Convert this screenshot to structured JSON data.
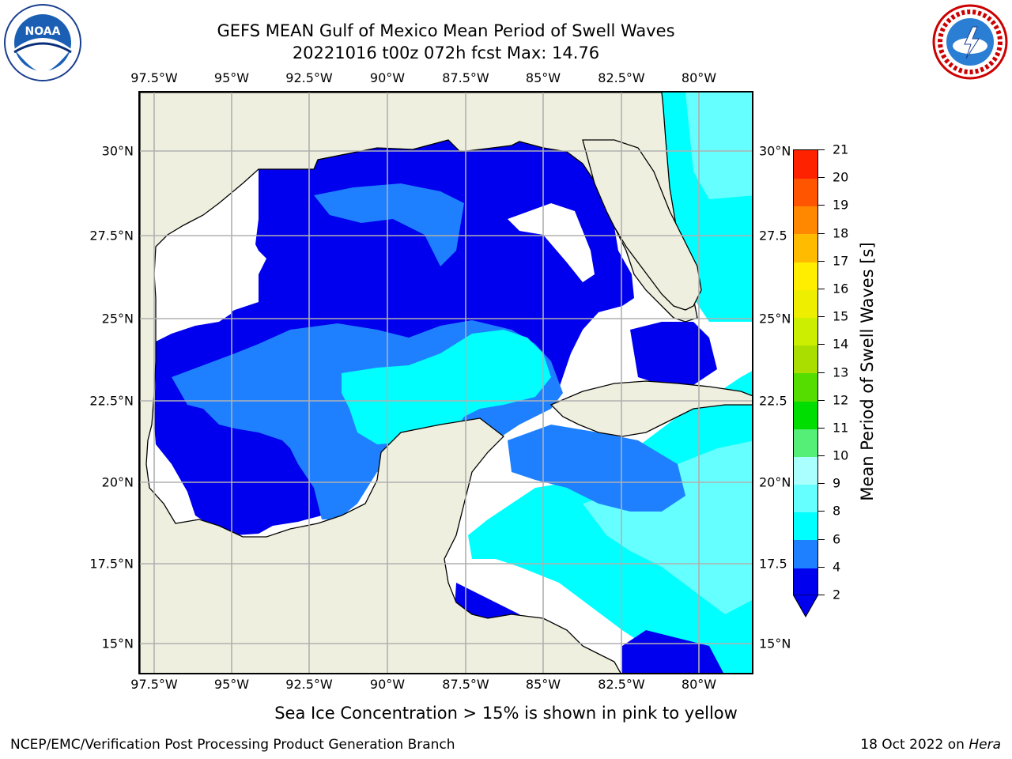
{
  "header": {
    "title_line1": "GEFS MEAN Gulf of Mexico Mean Period of Swell Waves",
    "title_line2": "20221016 t00z 072h fcst   Max: 14.76"
  },
  "logos": {
    "left": {
      "icon": "noaa-logo-icon",
      "text": "NOAA"
    },
    "right": {
      "icon": "nws-logo-icon",
      "text": "NATIONAL WEATHER SERVICE"
    }
  },
  "map": {
    "lon_ticks": [
      "97.5°W",
      "95°W",
      "92.5°W",
      "90°W",
      "87.5°W",
      "85°W",
      "82.5°W",
      "80°W"
    ],
    "lat_ticks": [
      "30°N",
      "27.5°N",
      "25°N",
      "22.5°N",
      "20°N",
      "17.5°N",
      "15°N"
    ],
    "lat_ticks_right": [
      "30°N",
      "27.5",
      "25°N",
      "22.5",
      "20°N",
      "17.5",
      "15°N"
    ],
    "land_color": "#efefdf",
    "no_data_color": "#ffffff",
    "grid_color": "#b0b0b0"
  },
  "colorbar": {
    "label": "Mean Period of Swell Waves [s]",
    "levels": [
      "2",
      "4",
      "6",
      "8",
      "9",
      "10",
      "11",
      "12",
      "13",
      "14",
      "15",
      "16",
      "17",
      "18",
      "19",
      "20",
      "21"
    ],
    "colors": [
      "#0000ee",
      "#1e80ff",
      "#00ffff",
      "#66ffff",
      "#aaffff",
      "#55ee77",
      "#00dd00",
      "#55dd00",
      "#aadd00",
      "#ccee00",
      "#eeee00",
      "#ffee00",
      "#ffbb00",
      "#ff8800",
      "#ff5500",
      "#ff2200"
    ],
    "extend_color": "#0000ee"
  },
  "notes": {
    "sea_ice": "Sea Ice Concentration > 15% is shown in pink to yellow"
  },
  "footer": {
    "left": "NCEP/EMC/Verification Post Processing Product Generation Branch",
    "right_prefix": "18 Oct 2022 on ",
    "right_machine": "Hera"
  }
}
